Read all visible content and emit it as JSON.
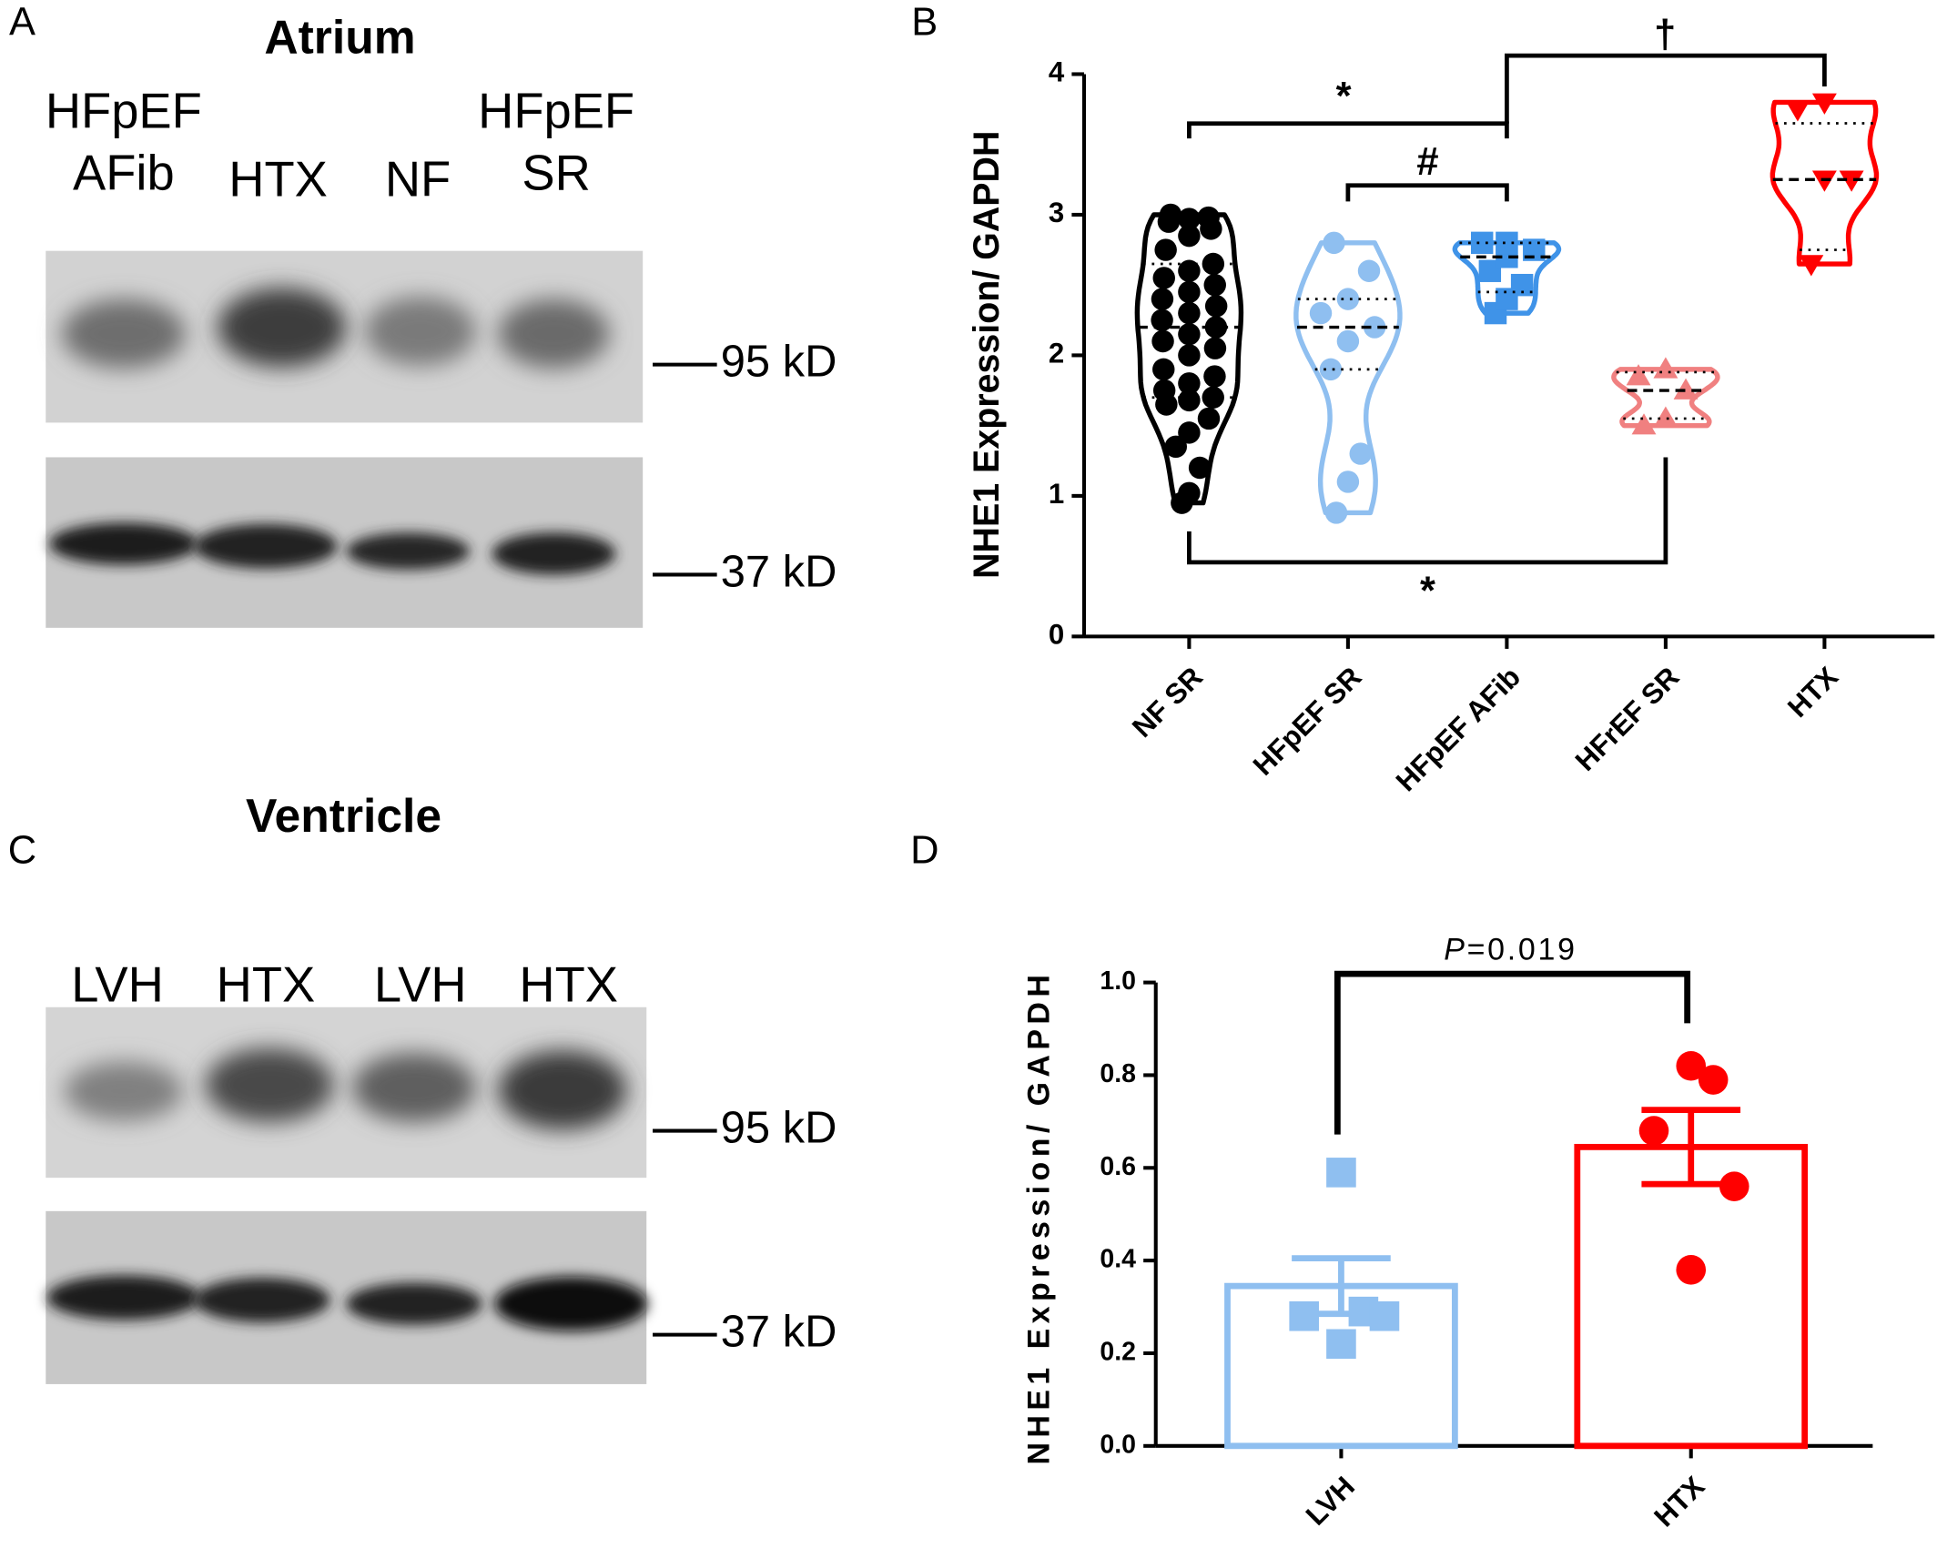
{
  "blots": [
    {
      "panel": "A",
      "title": "Atrium",
      "lanes": [
        [
          "HFpEF",
          "AFib"
        ],
        [
          "HTX"
        ],
        [
          "NF"
        ],
        [
          "HFpEF",
          "SR"
        ]
      ],
      "markers": [
        "95 kD",
        "37 kD"
      ]
    },
    {
      "panel": "C",
      "title": "Ventricle",
      "lanes": [
        [
          "LVH"
        ],
        [
          "HTX"
        ],
        [
          "LVH"
        ],
        [
          "HTX"
        ]
      ],
      "markers": [
        "95 kD",
        "37 kD"
      ]
    }
  ],
  "chart_data": [
    {
      "panel": "B",
      "type": "violin",
      "y_label": "NHE1 Expression/ GAPDH",
      "categories": [
        "NF SR",
        "HFpEF SR",
        "HFpEF AFib",
        "HFrEF SR",
        "HTX"
      ],
      "colors": [
        "#000000",
        "#8fbff0",
        "#3f93e8",
        "#f08080",
        "#ff0000"
      ],
      "markers": [
        "circle",
        "circle",
        "square",
        "triangle-up",
        "triangle-down"
      ],
      "values": [
        [
          0.95,
          1.02,
          1.2,
          1.35,
          1.45,
          1.55,
          1.65,
          1.68,
          1.7,
          1.75,
          1.8,
          1.85,
          1.9,
          2.0,
          2.05,
          2.1,
          2.15,
          2.2,
          2.25,
          2.3,
          2.35,
          2.4,
          2.45,
          2.5,
          2.55,
          2.6,
          2.65,
          2.75,
          2.85,
          2.9,
          2.95,
          2.97,
          2.98,
          3.0
        ],
        [
          0.88,
          1.1,
          1.3,
          1.9,
          2.1,
          2.2,
          2.3,
          2.4,
          2.6,
          2.8
        ],
        [
          2.3,
          2.4,
          2.5,
          2.6,
          2.7,
          2.75,
          2.8,
          2.8
        ],
        [
          1.5,
          1.55,
          1.75,
          1.85,
          1.9
        ],
        [
          2.65,
          3.25,
          3.25,
          3.75,
          3.8
        ]
      ],
      "medians": [
        2.2,
        2.2,
        2.7,
        1.75,
        3.25
      ],
      "quartiles": [
        [
          1.7,
          2.65
        ],
        [
          1.9,
          2.4
        ],
        [
          2.45,
          2.8
        ],
        [
          1.55,
          1.88
        ],
        [
          2.75,
          3.65
        ]
      ],
      "ylim": [
        0,
        4
      ],
      "yticks": [
        0,
        1,
        2,
        3,
        4
      ],
      "annotations": [
        "*",
        "#",
        "†",
        "*"
      ]
    },
    {
      "panel": "D",
      "type": "bar",
      "y_label": "NHE1 Expression/ GAPDH",
      "categories": [
        "LVH",
        "HTX"
      ],
      "colors": [
        "#8fbff0",
        "#ff0000"
      ],
      "markers": [
        "square",
        "circle"
      ],
      "values": [
        0.345,
        0.645
      ],
      "errors": [
        0.06,
        0.08
      ],
      "points": [
        [
          0.59,
          0.29,
          0.28,
          0.28,
          0.22
        ],
        [
          0.82,
          0.79,
          0.68,
          0.56,
          0.38
        ]
      ],
      "ylim": [
        0,
        1.0
      ],
      "yticks": [
        {
          "value": 0,
          "label": "0.0"
        },
        0.2,
        0.4,
        0.6,
        0.8,
        {
          "value": 1.0,
          "label": "1.0"
        }
      ],
      "annotation": [
        "P",
        "=0.019"
      ]
    }
  ]
}
